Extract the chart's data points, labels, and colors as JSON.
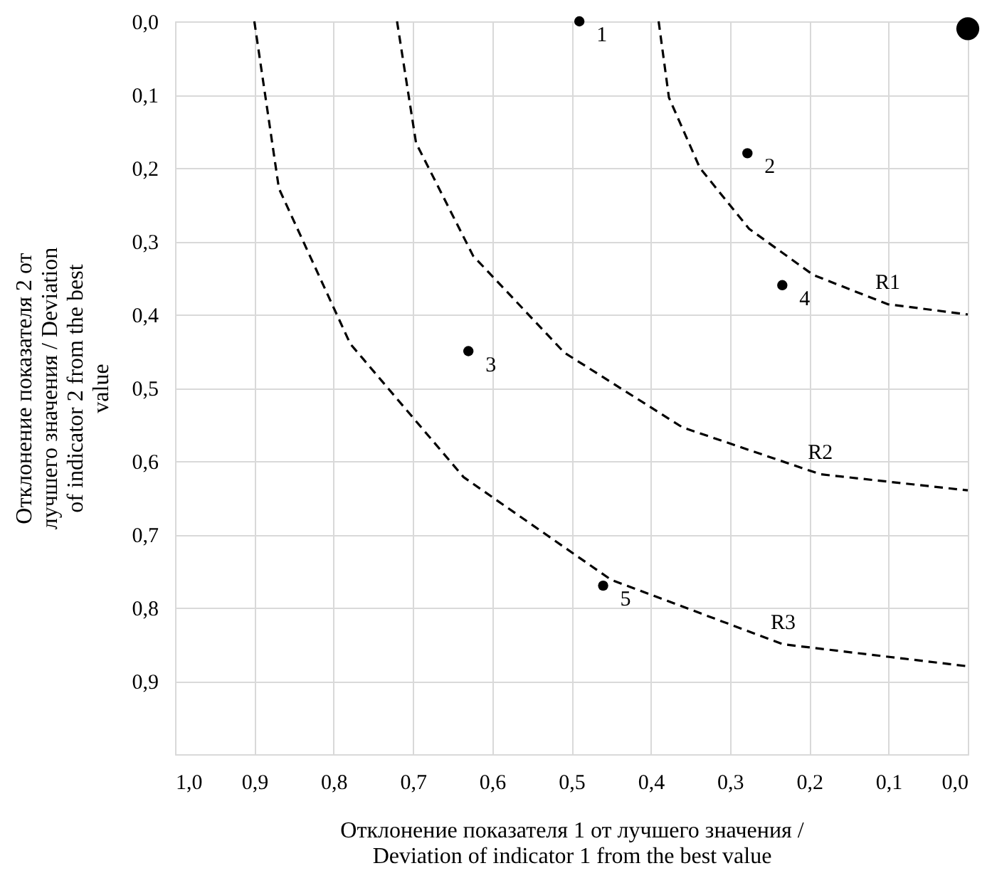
{
  "chart_data": {
    "type": "bubble",
    "xlabel": "Отклонение показателя 1 от лучшего значения / Deviation  of indicator 1 from the best value",
    "ylabel": "Отклонение показателя 2 от лучшего значения / Deviation  of indicator 2 from the best value",
    "series": [
      {
        "marker": "circle",
        "color": "#000000",
        "x": [
          0.49,
          0.278,
          0.63,
          0.234,
          0.46,
          0.0
        ],
        "values": [
          0.0,
          0.18,
          0.45,
          0.36,
          0.77,
          0.01
        ],
        "sizes": [
          0.2,
          0.2,
          0.2,
          0.2,
          0.2,
          1
        ]
      },
      {
        "name": "R1",
        "type": "line",
        "color": "#000000",
        "line_style": "dashed",
        "x": [
          0.39,
          0.377,
          0.338,
          0.276,
          0.195,
          0.101,
          0.0
        ],
        "values": [
          0.0,
          0.104,
          0.2,
          0.283,
          0.346,
          0.386,
          0.4
        ]
      },
      {
        "name": "R2",
        "type": "line",
        "color": "#000000",
        "line_style": "dashed",
        "x": [
          0.72,
          0.696,
          0.624,
          0.509,
          0.36,
          0.186,
          0.0
        ],
        "values": [
          0.0,
          0.166,
          0.32,
          0.452,
          0.554,
          0.618,
          0.64
        ]
      },
      {
        "name": "R3",
        "type": "line",
        "color": "#000000",
        "line_style": "dashed",
        "x": [
          0.9,
          0.869,
          0.779,
          0.636,
          0.45,
          0.233,
          0.0
        ],
        "values": [
          0.0,
          0.228,
          0.44,
          0.622,
          0.762,
          0.85,
          0.88
        ]
      }
    ],
    "annotations": [
      {
        "text": "1",
        "x": 0.49,
        "y": 0.0
      },
      {
        "text": "2",
        "x": 0.278,
        "y": 0.18
      },
      {
        "text": "3",
        "x": 0.63,
        "y": 0.45
      },
      {
        "text": "4",
        "x": 0.234,
        "y": 0.36
      },
      {
        "text": "5",
        "x": 0.46,
        "y": 0.77
      }
    ],
    "xlim": [
      1.0,
      0.0
    ],
    "xticks": [
      {
        "value": 1.0,
        "label": "1,0"
      },
      {
        "value": 0.9,
        "label": "0,9"
      },
      {
        "value": 0.8,
        "label": "0,8"
      },
      {
        "value": 0.7,
        "label": "0,7"
      },
      {
        "value": 0.6,
        "label": "0,6"
      },
      {
        "value": 0.5,
        "label": "0,5"
      },
      {
        "value": 0.4,
        "label": "0,4"
      },
      {
        "value": 0.3,
        "label": "0,3"
      },
      {
        "value": 0.2,
        "label": "0,2"
      },
      {
        "value": 0.1,
        "label": "0,1"
      },
      {
        "value": 0.0,
        "label": "0,0"
      }
    ],
    "ylim": [
      1.0,
      0.0
    ],
    "yticks": [
      {
        "value": 0.0,
        "label": "0,0"
      },
      {
        "value": 0.1,
        "label": "0,1"
      },
      {
        "value": 0.2,
        "label": "0,2"
      },
      {
        "value": 0.3,
        "label": "0,3"
      },
      {
        "value": 0.4,
        "label": "0,4"
      },
      {
        "value": 0.5,
        "label": "0,5"
      },
      {
        "value": 0.6,
        "label": "0,6"
      },
      {
        "value": 0.7,
        "label": "0,7"
      },
      {
        "value": 0.8,
        "label": "0,8"
      },
      {
        "value": 0.9,
        "label": "0,9"
      }
    ],
    "grid": true
  }
}
